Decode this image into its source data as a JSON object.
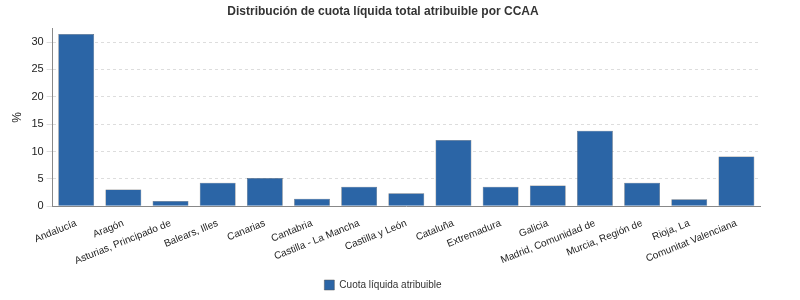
{
  "chart_data": {
    "type": "bar",
    "title": "Distribución de cuota líquida total atribuible por CCAA",
    "y_label": "%",
    "categories": [
      "Andalucía",
      "Aragón",
      "Asturias, Principado de",
      "Balears, Illes",
      "Canarias",
      "Cantabria",
      "Castilla - La Mancha",
      "Castilla y León",
      "Cataluña",
      "Extremadura",
      "Galicia",
      "Madrid, Comunidad de",
      "Murcia, Región de",
      "Rioja, La",
      "Comunitat Valenciana"
    ],
    "series": [
      {
        "name": "Cuota líquida atribuible",
        "color": "#2b65a6",
        "values": [
          31.5,
          3.1,
          1.0,
          4.3,
          5.2,
          1.4,
          3.6,
          2.4,
          12.1,
          3.6,
          3.8,
          13.8,
          4.3,
          1.3,
          9.1
        ]
      }
    ],
    "ylim": [
      0,
      32.5
    ],
    "yticks": [
      0,
      5,
      10,
      15,
      20,
      25,
      30
    ],
    "grid": true,
    "legend": "bottom"
  }
}
